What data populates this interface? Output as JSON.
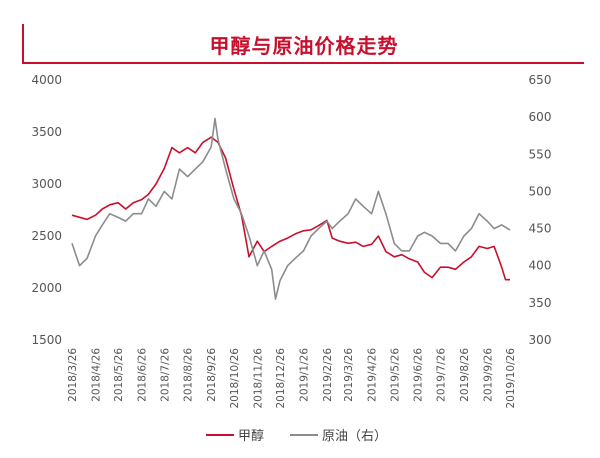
{
  "colors": {
    "accent": "#c8102e",
    "methanol": "#c8102e",
    "crude": "#8c8c8c"
  },
  "chart_data": {
    "type": "line",
    "title": "甲醇与原油价格走势",
    "categories": [
      "2018/3/26",
      "2018/4/26",
      "2018/5/26",
      "2018/6/26",
      "2018/7/26",
      "2018/8/26",
      "2018/9/26",
      "2018/10/26",
      "2018/11/26",
      "2018/12/26",
      "2019/1/26",
      "2019/2/26",
      "2019/3/26",
      "2019/4/26",
      "2019/5/26",
      "2019/6/26",
      "2019/7/26",
      "2019/8/26",
      "2019/9/26",
      "2019/10/26"
    ],
    "y_left": {
      "ylim": [
        1500,
        4000
      ],
      "ticks": [
        "1500",
        "2000",
        "2500",
        "3000",
        "3500",
        "4000"
      ]
    },
    "y_right": {
      "ylim": [
        300,
        650
      ],
      "ticks": [
        "300",
        "350",
        "400",
        "450",
        "500",
        "550",
        "600",
        "650"
      ]
    },
    "legend_position": "bottom",
    "series": [
      {
        "name": "甲醇",
        "axis": "left",
        "color": "#c8102e",
        "points": [
          [
            "2018/3/26",
            2700
          ],
          [
            "2018/4/5",
            2680
          ],
          [
            "2018/4/15",
            2660
          ],
          [
            "2018/4/26",
            2700
          ],
          [
            "2018/5/5",
            2760
          ],
          [
            "2018/5/15",
            2800
          ],
          [
            "2018/5/26",
            2820
          ],
          [
            "2018/6/5",
            2760
          ],
          [
            "2018/6/15",
            2820
          ],
          [
            "2018/6/26",
            2850
          ],
          [
            "2018/7/5",
            2900
          ],
          [
            "2018/7/15",
            3000
          ],
          [
            "2018/7/26",
            3150
          ],
          [
            "2018/8/5",
            3350
          ],
          [
            "2018/8/15",
            3300
          ],
          [
            "2018/8/26",
            3350
          ],
          [
            "2018/9/5",
            3300
          ],
          [
            "2018/9/15",
            3400
          ],
          [
            "2018/9/26",
            3450
          ],
          [
            "2018/10/5",
            3400
          ],
          [
            "2018/10/15",
            3250
          ],
          [
            "2018/10/26",
            2950
          ],
          [
            "2018/11/5",
            2700
          ],
          [
            "2018/11/15",
            2300
          ],
          [
            "2018/11/26",
            2450
          ],
          [
            "2018/12/5",
            2350
          ],
          [
            "2018/12/15",
            2400
          ],
          [
            "2018/12/26",
            2450
          ],
          [
            "2019/1/5",
            2480
          ],
          [
            "2019/1/15",
            2520
          ],
          [
            "2019/1/26",
            2550
          ],
          [
            "2019/2/5",
            2560
          ],
          [
            "2019/2/15",
            2600
          ],
          [
            "2019/2/26",
            2650
          ],
          [
            "2019/3/5",
            2480
          ],
          [
            "2019/3/15",
            2450
          ],
          [
            "2019/3/26",
            2430
          ],
          [
            "2019/4/5",
            2440
          ],
          [
            "2019/4/15",
            2400
          ],
          [
            "2019/4/26",
            2420
          ],
          [
            "2019/5/5",
            2500
          ],
          [
            "2019/5/15",
            2350
          ],
          [
            "2019/5/26",
            2300
          ],
          [
            "2019/6/5",
            2320
          ],
          [
            "2019/6/15",
            2280
          ],
          [
            "2019/6/26",
            2250
          ],
          [
            "2019/7/5",
            2150
          ],
          [
            "2019/7/15",
            2100
          ],
          [
            "2019/7/26",
            2200
          ],
          [
            "2019/8/5",
            2200
          ],
          [
            "2019/8/15",
            2180
          ],
          [
            "2019/8/26",
            2250
          ],
          [
            "2019/9/5",
            2300
          ],
          [
            "2019/9/15",
            2400
          ],
          [
            "2019/9/26",
            2380
          ],
          [
            "2019/10/5",
            2400
          ],
          [
            "2019/10/15",
            2200
          ],
          [
            "2019/10/20",
            2080
          ],
          [
            "2019/10/26",
            2080
          ]
        ]
      },
      {
        "name": "原油（右）",
        "axis": "right",
        "color": "#8c8c8c",
        "points": [
          [
            "2018/3/26",
            430
          ],
          [
            "2018/4/5",
            400
          ],
          [
            "2018/4/15",
            410
          ],
          [
            "2018/4/26",
            440
          ],
          [
            "2018/5/5",
            455
          ],
          [
            "2018/5/15",
            470
          ],
          [
            "2018/5/26",
            465
          ],
          [
            "2018/6/5",
            460
          ],
          [
            "2018/6/15",
            470
          ],
          [
            "2018/6/26",
            470
          ],
          [
            "2018/7/5",
            490
          ],
          [
            "2018/7/15",
            480
          ],
          [
            "2018/7/26",
            500
          ],
          [
            "2018/8/5",
            490
          ],
          [
            "2018/8/15",
            530
          ],
          [
            "2018/8/26",
            520
          ],
          [
            "2018/9/5",
            530
          ],
          [
            "2018/9/15",
            540
          ],
          [
            "2018/9/26",
            560
          ],
          [
            "2018/10/1",
            598
          ],
          [
            "2018/10/5",
            570
          ],
          [
            "2018/10/15",
            530
          ],
          [
            "2018/10/26",
            490
          ],
          [
            "2018/11/5",
            470
          ],
          [
            "2018/11/15",
            440
          ],
          [
            "2018/11/26",
            400
          ],
          [
            "2018/12/5",
            420
          ],
          [
            "2018/12/15",
            395
          ],
          [
            "2018/12/20",
            355
          ],
          [
            "2018/12/26",
            380
          ],
          [
            "2019/1/5",
            400
          ],
          [
            "2019/1/15",
            410
          ],
          [
            "2019/1/26",
            420
          ],
          [
            "2019/2/5",
            440
          ],
          [
            "2019/2/15",
            450
          ],
          [
            "2019/2/26",
            460
          ],
          [
            "2019/3/5",
            450
          ],
          [
            "2019/3/15",
            460
          ],
          [
            "2019/3/26",
            470
          ],
          [
            "2019/4/5",
            490
          ],
          [
            "2019/4/15",
            480
          ],
          [
            "2019/4/26",
            470
          ],
          [
            "2019/5/5",
            500
          ],
          [
            "2019/5/15",
            470
          ],
          [
            "2019/5/26",
            430
          ],
          [
            "2019/6/5",
            420
          ],
          [
            "2019/6/15",
            420
          ],
          [
            "2019/6/26",
            440
          ],
          [
            "2019/7/5",
            445
          ],
          [
            "2019/7/15",
            440
          ],
          [
            "2019/7/26",
            430
          ],
          [
            "2019/8/5",
            430
          ],
          [
            "2019/8/15",
            420
          ],
          [
            "2019/8/26",
            440
          ],
          [
            "2019/9/5",
            450
          ],
          [
            "2019/9/15",
            470
          ],
          [
            "2019/9/26",
            460
          ],
          [
            "2019/10/5",
            450
          ],
          [
            "2019/10/15",
            455
          ],
          [
            "2019/10/26",
            448
          ]
        ]
      }
    ]
  }
}
